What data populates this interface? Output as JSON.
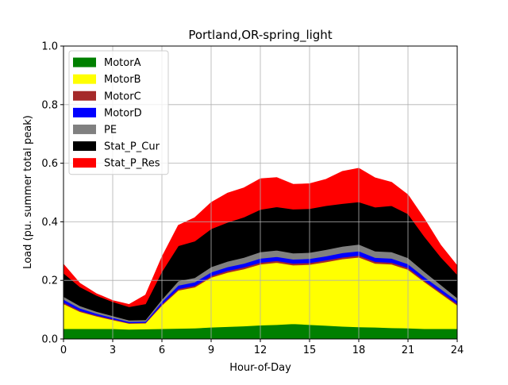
{
  "chart_data": {
    "type": "area",
    "stacked": true,
    "title": "Portland,OR-spring_light",
    "xlabel": "Hour-of-Day",
    "ylabel": "Load (pu. summer total peak)",
    "xlim": [
      0,
      24
    ],
    "ylim": [
      0,
      1.0
    ],
    "xticks": [
      0,
      3,
      6,
      9,
      12,
      15,
      18,
      21,
      24
    ],
    "yticks": [
      0.0,
      0.2,
      0.4,
      0.6,
      0.8,
      1.0
    ],
    "xtick_labels": [
      "0",
      "3",
      "6",
      "9",
      "12",
      "15",
      "18",
      "21",
      "24"
    ],
    "ytick_labels": [
      "0.0",
      "0.2",
      "0.4",
      "0.6",
      "0.8",
      "1.0"
    ],
    "grid": true,
    "legend_position": "top-left",
    "x": [
      0,
      1,
      2,
      3,
      4,
      5,
      6,
      7,
      8,
      9,
      10,
      11,
      12,
      13,
      14,
      15,
      16,
      17,
      18,
      19,
      20,
      21,
      22,
      23,
      24
    ],
    "series": [
      {
        "name": "MotorA",
        "color": "#008000",
        "values": [
          0.035,
          0.035,
          0.035,
          0.035,
          0.033,
          0.034,
          0.035,
          0.036,
          0.037,
          0.04,
          0.042,
          0.044,
          0.047,
          0.049,
          0.052,
          0.049,
          0.046,
          0.043,
          0.041,
          0.04,
          0.038,
          0.037,
          0.035,
          0.035,
          0.035
        ]
      },
      {
        "name": "MotorB",
        "color": "#ffff00",
        "values": [
          0.085,
          0.058,
          0.043,
          0.03,
          0.02,
          0.02,
          0.08,
          0.13,
          0.14,
          0.17,
          0.185,
          0.195,
          0.208,
          0.212,
          0.2,
          0.205,
          0.217,
          0.23,
          0.238,
          0.218,
          0.217,
          0.2,
          0.16,
          0.12,
          0.08
        ]
      },
      {
        "name": "MotorC",
        "color": "#a52a2a",
        "values": [
          0.005,
          0.004,
          0.003,
          0.003,
          0.002,
          0.002,
          0.004,
          0.005,
          0.005,
          0.005,
          0.006,
          0.006,
          0.006,
          0.006,
          0.006,
          0.006,
          0.006,
          0.006,
          0.006,
          0.006,
          0.006,
          0.006,
          0.005,
          0.005,
          0.005
        ]
      },
      {
        "name": "MotorD",
        "color": "#0000ff",
        "values": [
          0.01,
          0.008,
          0.006,
          0.005,
          0.004,
          0.004,
          0.008,
          0.012,
          0.012,
          0.013,
          0.013,
          0.013,
          0.014,
          0.014,
          0.014,
          0.014,
          0.014,
          0.015,
          0.015,
          0.014,
          0.014,
          0.013,
          0.012,
          0.011,
          0.01
        ]
      },
      {
        "name": "PE",
        "color": "#808080",
        "values": [
          0.01,
          0.008,
          0.007,
          0.006,
          0.005,
          0.005,
          0.008,
          0.015,
          0.015,
          0.018,
          0.019,
          0.02,
          0.022,
          0.022,
          0.021,
          0.021,
          0.022,
          0.022,
          0.023,
          0.022,
          0.022,
          0.021,
          0.018,
          0.014,
          0.01
        ]
      },
      {
        "name": "Stat_P_Cur",
        "color": "#000000",
        "values": [
          0.08,
          0.065,
          0.055,
          0.048,
          0.046,
          0.055,
          0.095,
          0.12,
          0.125,
          0.13,
          0.133,
          0.138,
          0.145,
          0.148,
          0.15,
          0.15,
          0.15,
          0.146,
          0.145,
          0.15,
          0.158,
          0.15,
          0.12,
          0.095,
          0.08
        ]
      },
      {
        "name": "Stat_P_Res",
        "color": "#ff0000",
        "values": [
          0.03,
          0.012,
          0.006,
          0.004,
          0.008,
          0.03,
          0.05,
          0.07,
          0.08,
          0.09,
          0.1,
          0.1,
          0.105,
          0.1,
          0.085,
          0.085,
          0.09,
          0.11,
          0.115,
          0.1,
          0.08,
          0.065,
          0.06,
          0.04,
          0.03
        ]
      }
    ]
  }
}
